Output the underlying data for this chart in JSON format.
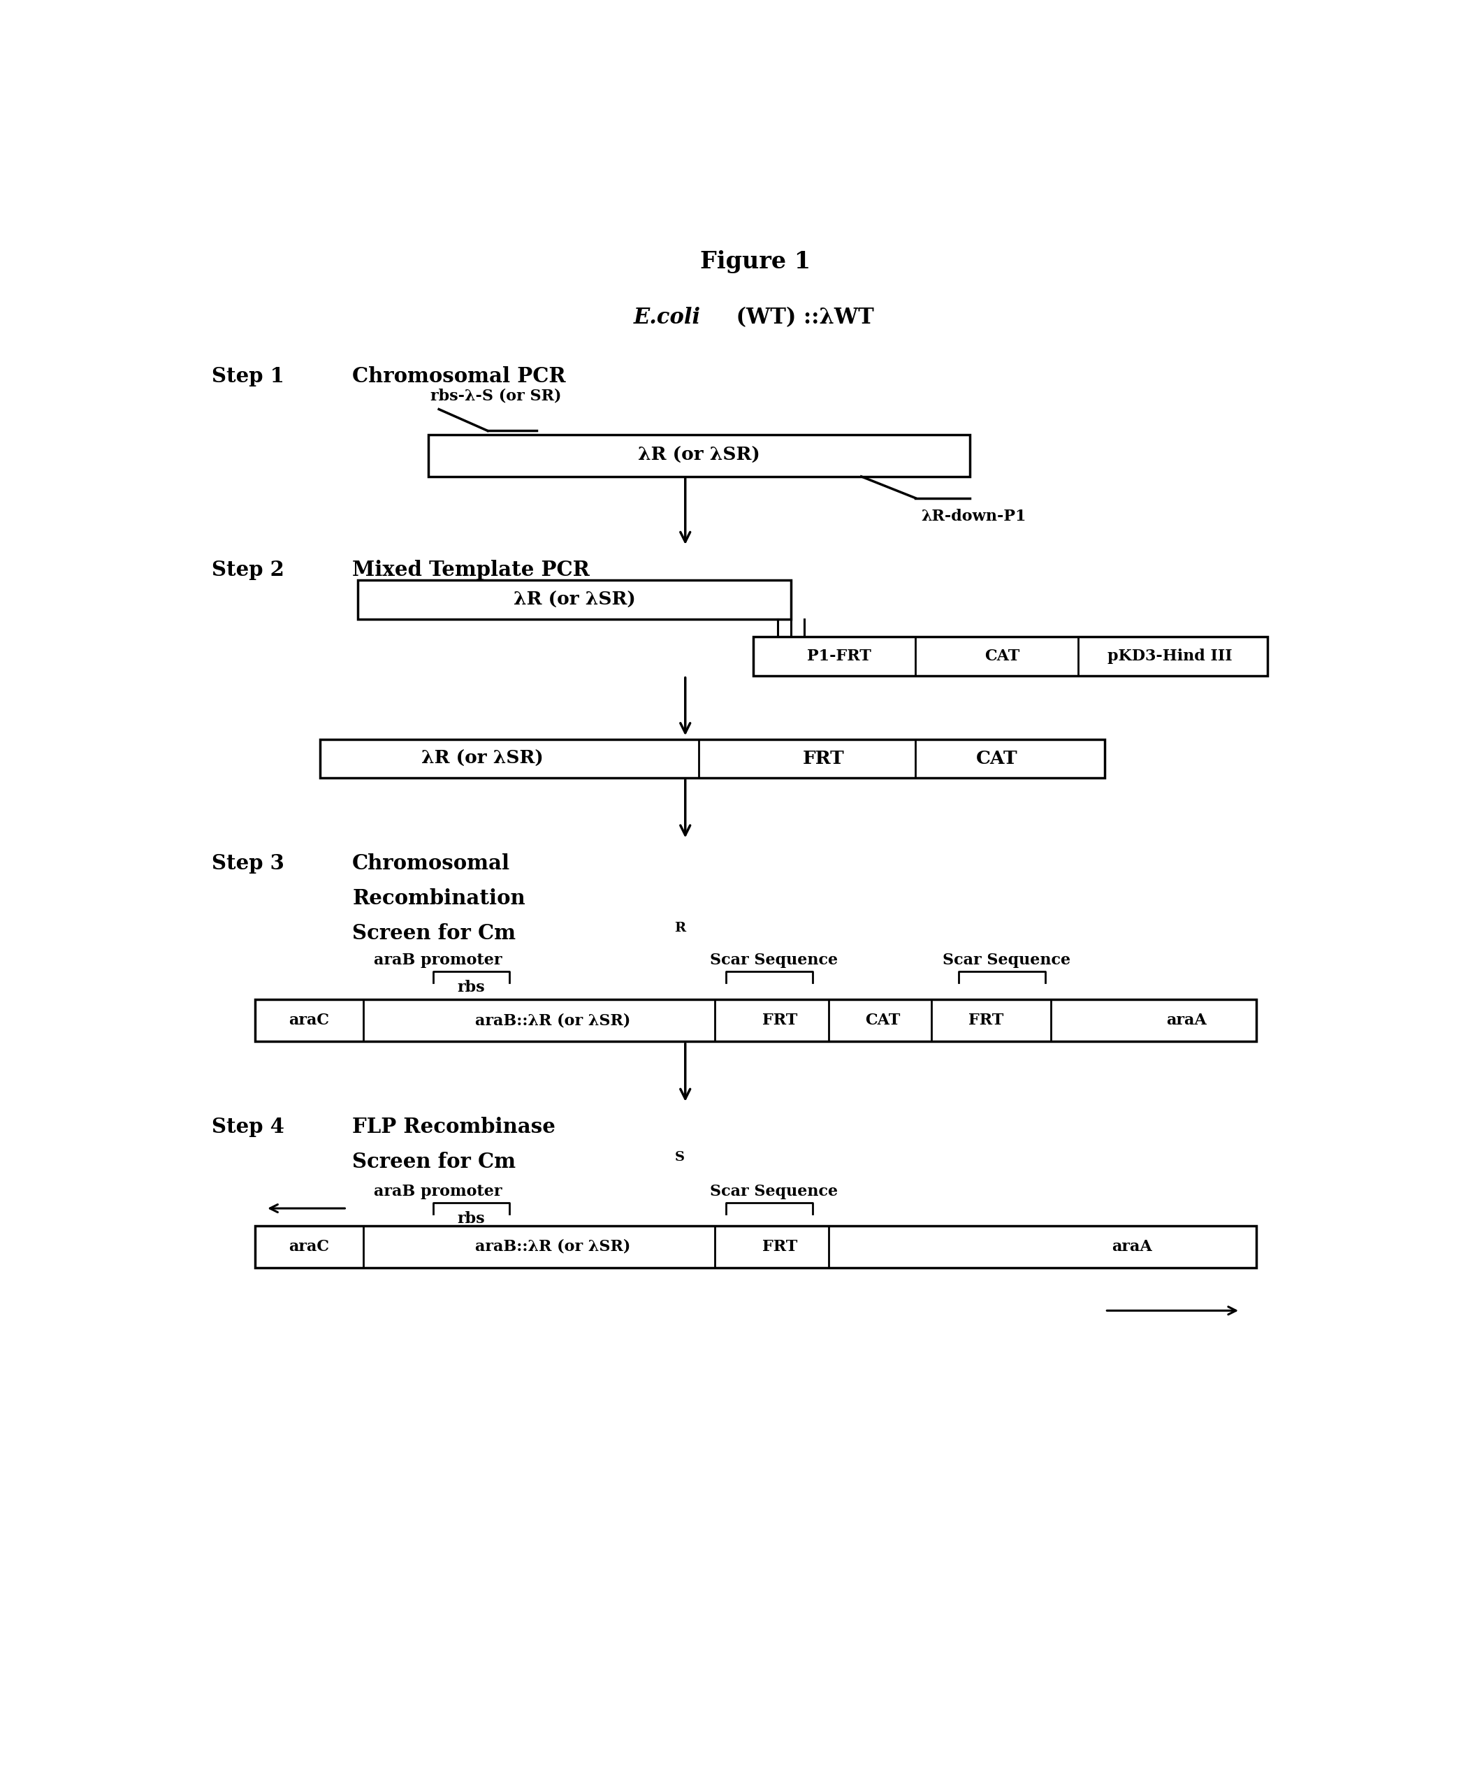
{
  "title": "Figure 1",
  "ecoli_italic": "E.coli",
  "ecoli_normal": " (WT) ::λWT",
  "step1_title": "Chromosomal PCR",
  "step2_title": "Mixed Template PCR",
  "step3_line1": "Chromosomal",
  "step3_line2": "Recombination",
  "step3_line3": "Screen for Cm",
  "step3_super": "R",
  "step4_line1": "FLP Recombinase",
  "step4_line2": "Screen for Cm",
  "step4_super": "S",
  "lambda_R_SR": "λR (or λSR)",
  "araB_lambdaR": "araB::λR (or λSR)",
  "bg_color": "#ffffff"
}
